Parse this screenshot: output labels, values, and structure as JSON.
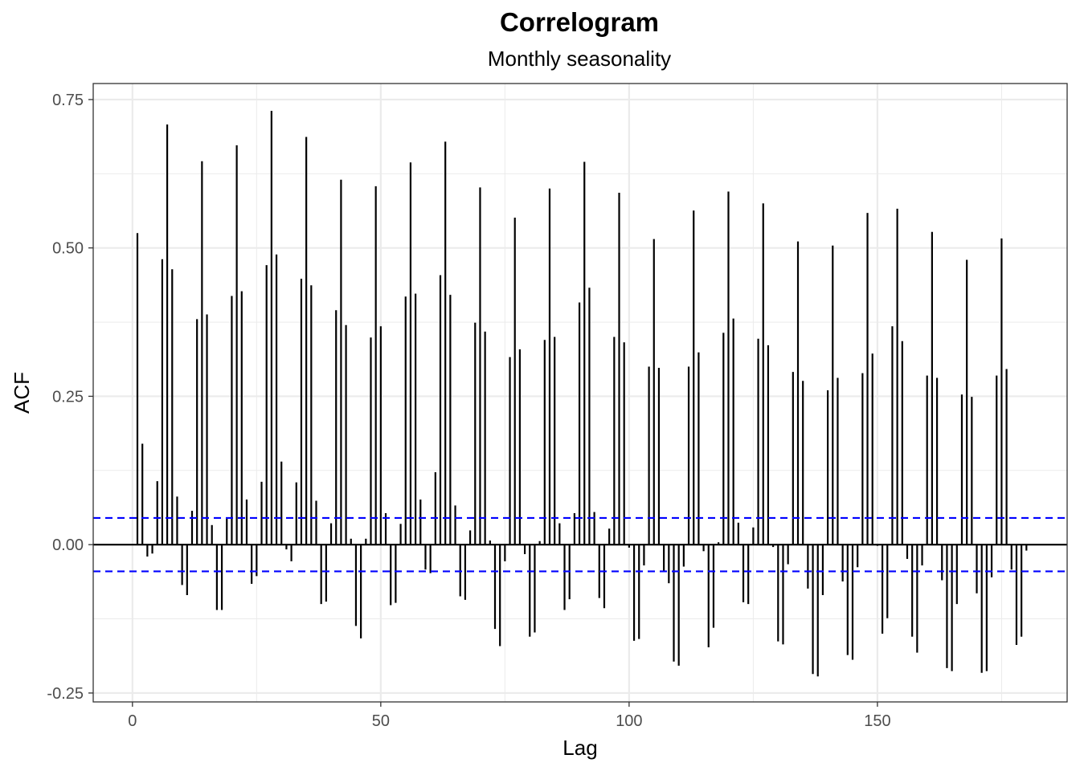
{
  "chart_data": {
    "type": "bar",
    "subtype": "correlogram",
    "title": "Correlogram",
    "subtitle": "Monthly seasonality",
    "xlabel": "Lag",
    "ylabel": "ACF",
    "xlim": [
      -7.9,
      188.2
    ],
    "ylim": [
      -0.265,
      0.777
    ],
    "x_ticks": [
      0,
      50,
      100,
      150
    ],
    "x_tick_labels": [
      "0",
      "50",
      "100",
      "150"
    ],
    "y_ticks": [
      -0.25,
      0.0,
      0.25,
      0.5,
      0.75
    ],
    "y_tick_labels": [
      "-0.25",
      "0.00",
      "0.25",
      "0.50",
      "0.75"
    ],
    "grid": true,
    "confidence_bound": 0.045,
    "colors": {
      "bars": "#000000",
      "confidence_lines": "#0000ff",
      "zero_line": "#000000",
      "grid": "#ebebeb",
      "panel_border": "#333333"
    },
    "lags": [
      1,
      2,
      3,
      4,
      5,
      6,
      7,
      8,
      9,
      10,
      11,
      12,
      13,
      14,
      15,
      16,
      17,
      18,
      19,
      20,
      21,
      22,
      23,
      24,
      25,
      26,
      27,
      28,
      29,
      30,
      31,
      32,
      33,
      34,
      35,
      36,
      37,
      38,
      39,
      40,
      41,
      42,
      43,
      44,
      45,
      46,
      47,
      48,
      49,
      50,
      51,
      52,
      53,
      54,
      55,
      56,
      57,
      58,
      59,
      60,
      61,
      62,
      63,
      64,
      65,
      66,
      67,
      68,
      69,
      70,
      71,
      72,
      73,
      74,
      75,
      76,
      77,
      78,
      79,
      80,
      81,
      82,
      83,
      84,
      85,
      86,
      87,
      88,
      89,
      90,
      91,
      92,
      93,
      94,
      95,
      96,
      97,
      98,
      99,
      100,
      101,
      102,
      103,
      104,
      105,
      106,
      107,
      108,
      109,
      110,
      111,
      112,
      113,
      114,
      115,
      116,
      117,
      118,
      119,
      120,
      121,
      122,
      123,
      124,
      125,
      126,
      127,
      128,
      129,
      130,
      131,
      132,
      133,
      134,
      135,
      136,
      137,
      138,
      139,
      140,
      141,
      142,
      143,
      144,
      145,
      146,
      147,
      148,
      149,
      150,
      151,
      152,
      153,
      154,
      155,
      156,
      157,
      158,
      159,
      160,
      161,
      162,
      163,
      164,
      165,
      166,
      167,
      168,
      169,
      170,
      171,
      172,
      173,
      174,
      175,
      176,
      177,
      178,
      179,
      180
    ],
    "values": [
      0.525,
      0.17,
      -0.02,
      -0.015,
      0.107,
      0.481,
      0.708,
      0.464,
      0.081,
      -0.068,
      -0.085,
      0.057,
      0.38,
      0.646,
      0.388,
      0.033,
      -0.11,
      -0.11,
      0.045,
      0.419,
      0.673,
      0.427,
      0.076,
      -0.066,
      -0.053,
      0.106,
      0.471,
      0.731,
      0.489,
      0.14,
      -0.008,
      -0.028,
      0.105,
      0.448,
      0.687,
      0.437,
      0.074,
      -0.1,
      -0.096,
      0.036,
      0.395,
      0.615,
      0.37,
      0.01,
      -0.137,
      -0.158,
      0.01,
      0.349,
      0.604,
      0.368,
      0.053,
      -0.102,
      -0.098,
      0.035,
      0.418,
      0.644,
      0.423,
      0.076,
      -0.042,
      -0.048,
      0.122,
      0.454,
      0.679,
      0.421,
      0.066,
      -0.087,
      -0.093,
      0.024,
      0.374,
      0.602,
      0.359,
      0.007,
      -0.142,
      -0.171,
      -0.028,
      0.316,
      0.551,
      0.329,
      -0.016,
      -0.155,
      -0.148,
      0.006,
      0.345,
      0.6,
      0.35,
      0.036,
      -0.11,
      -0.092,
      0.053,
      0.408,
      0.645,
      0.433,
      0.055,
      -0.09,
      -0.107,
      0.027,
      0.35,
      0.593,
      0.341,
      -0.005,
      -0.162,
      -0.159,
      -0.035,
      0.3,
      0.515,
      0.298,
      -0.044,
      -0.065,
      -0.197,
      -0.204,
      -0.037,
      0.3,
      0.563,
      0.324,
      -0.011,
      -0.173,
      -0.14,
      0.004,
      0.357,
      0.595,
      0.381,
      0.037,
      -0.097,
      -0.1,
      0.029,
      0.347,
      0.575,
      0.336,
      -0.004,
      -0.163,
      -0.168,
      -0.033,
      0.291,
      0.511,
      0.276,
      -0.074,
      -0.218,
      -0.222,
      -0.085,
      0.26,
      0.504,
      0.281,
      -0.062,
      -0.186,
      -0.194,
      -0.038,
      0.289,
      0.559,
      0.322,
      -0.002,
      -0.15,
      -0.124,
      0.368,
      0.566,
      0.343,
      -0.024,
      -0.155,
      -0.182,
      -0.035,
      0.285,
      0.527,
      0.281,
      -0.06,
      -0.208,
      -0.213,
      -0.1,
      0.253,
      0.48,
      0.249,
      -0.082,
      -0.216,
      -0.213,
      -0.055,
      0.285,
      0.516,
      0.296,
      -0.042,
      -0.169,
      -0.155,
      -0.01
    ]
  }
}
